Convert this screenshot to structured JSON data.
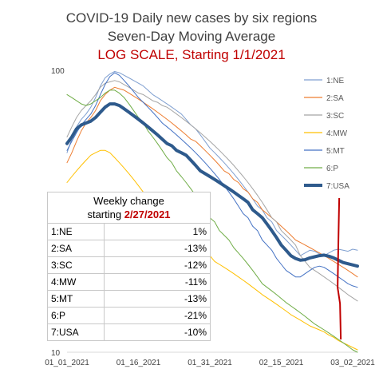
{
  "chart_data": {
    "type": "line",
    "title": "COVID-19 Daily new cases by six regions",
    "subtitle": "Seven-Day Moving Average",
    "note": "LOG SCALE, Starting 1/1/2021",
    "y_scale": "log",
    "ylim": [
      10,
      100
    ],
    "y_ticks": [
      "100",
      "10"
    ],
    "x_tick_labels": [
      "01_01_2021",
      "01_16_2021",
      "01_31_2021",
      "02_15_2021",
      "03_02_2021"
    ],
    "x": [
      "2021-01-01",
      "2021-01-02",
      "2021-01-03",
      "2021-01-04",
      "2021-01-05",
      "2021-01-06",
      "2021-01-07",
      "2021-01-08",
      "2021-01-09",
      "2021-01-10",
      "2021-01-11",
      "2021-01-12",
      "2021-01-13",
      "2021-01-14",
      "2021-01-15",
      "2021-01-16",
      "2021-01-17",
      "2021-01-18",
      "2021-01-19",
      "2021-01-20",
      "2021-01-21",
      "2021-01-22",
      "2021-01-23",
      "2021-01-24",
      "2021-01-25",
      "2021-01-26",
      "2021-01-27",
      "2021-01-28",
      "2021-01-29",
      "2021-01-30",
      "2021-01-31",
      "2021-02-01",
      "2021-02-02",
      "2021-02-03",
      "2021-02-04",
      "2021-02-05",
      "2021-02-06",
      "2021-02-07",
      "2021-02-08",
      "2021-02-09",
      "2021-02-10",
      "2021-02-11",
      "2021-02-12",
      "2021-02-13",
      "2021-02-14",
      "2021-02-15",
      "2021-02-16",
      "2021-02-17",
      "2021-02-18",
      "2021-02-19",
      "2021-02-20",
      "2021-02-21",
      "2021-02-22",
      "2021-02-23",
      "2021-02-24",
      "2021-02-25",
      "2021-02-26",
      "2021-02-27",
      "2021-02-28",
      "2021-03-01",
      "2021-03-02",
      "2021-03-03"
    ],
    "legend_position": "right",
    "series": [
      {
        "name": "1:NE",
        "color": "#7f9fd0",
        "width": 1,
        "values": [
          51,
          57,
          63,
          67,
          70,
          74,
          80,
          88,
          94,
          97,
          99,
          98,
          96,
          94,
          92,
          90,
          88,
          85,
          82,
          80,
          78,
          76,
          74,
          72,
          70,
          67,
          64,
          62,
          59,
          56,
          53,
          51,
          49,
          47,
          45,
          43,
          41,
          39,
          37,
          35,
          33,
          32,
          30,
          29,
          27,
          26,
          25,
          24,
          23,
          22,
          22.5,
          23,
          22.8,
          22.3,
          22,
          22.5,
          23,
          23.2,
          23,
          22.8,
          23.2,
          23
        ]
      },
      {
        "name": "2:SA",
        "color": "#ed7d31",
        "width": 1,
        "values": [
          47,
          51,
          56,
          61,
          65,
          68,
          72,
          78,
          82,
          85,
          87,
          86,
          85,
          83,
          81,
          79,
          77,
          75,
          73,
          71,
          69,
          67,
          65,
          63,
          61,
          59,
          57,
          56,
          54,
          52,
          50,
          48,
          46,
          44,
          43,
          41,
          40,
          38,
          37,
          35,
          34,
          32,
          31,
          30,
          29,
          28,
          27,
          26,
          25,
          24.5,
          24,
          23.5,
          23,
          22.5,
          22,
          21.5,
          21,
          20.5,
          20,
          19.5,
          19,
          18.5
        ]
      },
      {
        "name": "3:SC",
        "color": "#a5a5a5",
        "width": 1,
        "values": [
          58,
          63,
          68,
          72,
          75,
          78,
          82,
          87,
          90,
          91,
          92,
          91,
          89,
          87,
          85,
          83,
          82,
          80,
          78,
          77,
          75,
          74,
          72,
          70,
          68,
          66,
          64,
          62,
          60,
          58,
          56,
          54,
          52,
          50,
          48,
          46,
          44,
          42,
          40,
          38,
          36,
          34,
          32,
          30,
          29,
          27,
          26,
          25,
          24,
          22,
          21,
          20,
          19.5,
          19,
          18.5,
          18,
          17.5,
          17,
          16.5,
          16,
          15.6,
          15.2
        ]
      },
      {
        "name": "4:MW",
        "color": "#ffc000",
        "width": 1,
        "values": [
          40,
          42,
          44,
          46,
          48,
          50,
          51,
          52,
          52,
          51,
          49,
          47,
          45,
          43,
          41,
          39,
          37,
          35,
          34,
          33,
          32,
          31,
          30,
          29,
          28,
          27,
          26,
          25,
          24,
          23,
          22,
          21,
          20.5,
          20,
          19.5,
          19,
          18.5,
          18,
          17.5,
          17,
          16.5,
          16,
          15.6,
          15.2,
          14.8,
          14.4,
          14,
          13.6,
          13.3,
          13,
          12.7,
          12.4,
          12.2,
          12,
          11.8,
          11.5,
          11.3,
          11,
          10.8,
          10.6,
          10.4,
          10.2
        ]
      },
      {
        "name": "5:MT",
        "color": "#4472c4",
        "width": 1,
        "values": [
          52,
          56,
          60,
          64,
          67,
          70,
          75,
          82,
          89,
          95,
          98,
          96,
          92,
          88,
          84,
          80,
          77,
          74,
          71,
          68,
          65,
          63,
          61,
          59,
          57,
          55,
          53,
          51,
          49,
          47,
          45,
          43,
          41,
          39,
          37,
          35,
          33,
          31,
          30,
          28,
          27,
          25,
          24,
          23,
          21.5,
          20.5,
          19.5,
          19,
          18.5,
          18.5,
          19,
          19.5,
          20,
          20.2,
          20,
          19.5,
          19,
          18.5,
          18,
          17.5,
          17.2,
          17
        ]
      },
      {
        "name": "6:P",
        "color": "#70ad47",
        "width": 1,
        "values": [
          82,
          80,
          78,
          76,
          75,
          76,
          78,
          80,
          83,
          85,
          85,
          83,
          80,
          76,
          72,
          68,
          65,
          61,
          58,
          55,
          52,
          49,
          47,
          44,
          42,
          40,
          38,
          36,
          34,
          32,
          30,
          29,
          27,
          26,
          25,
          23.5,
          22.5,
          21.5,
          20.5,
          19.5,
          18.5,
          17.5,
          17,
          16.5,
          16,
          15.5,
          15,
          14.6,
          14.2,
          13.8,
          13.4,
          13,
          12.6,
          12.3,
          12,
          11.7,
          11.4,
          11.1,
          10.8,
          10.5,
          10.2,
          10
        ]
      },
      {
        "name": "7:USA",
        "color": "#2e5a8c",
        "width": 4,
        "values": [
          55,
          58,
          62,
          64,
          65,
          66,
          68,
          71,
          74,
          76,
          76,
          75,
          73,
          71,
          69,
          67,
          65,
          63,
          61,
          59,
          57,
          55,
          54,
          52,
          51,
          50,
          48,
          46,
          44,
          43,
          42,
          41,
          40,
          39,
          38,
          37,
          36,
          35,
          34,
          32,
          31,
          30,
          28.5,
          27,
          25.5,
          24,
          23,
          22,
          21.5,
          21.2,
          21.3,
          21.6,
          21.8,
          22,
          22.1,
          21.9,
          21.6,
          21.2,
          20.8,
          20.6,
          20.4,
          20.2
        ]
      }
    ]
  },
  "table": {
    "header_line1": "Weekly change",
    "header_line2_prefix": "starting ",
    "header_date": "2/27/2021",
    "rows": [
      {
        "name": "1:NE",
        "value": "1%"
      },
      {
        "name": "2:SA",
        "value": "-13%"
      },
      {
        "name": "3:SC",
        "value": "-12%"
      },
      {
        "name": "4:MW",
        "value": "-11%"
      },
      {
        "name": "5:MT",
        "value": "-13%"
      },
      {
        "name": "6:P",
        "value": "-21%"
      },
      {
        "name": "7:USA",
        "value": "-10%"
      }
    ]
  },
  "marker_date": "2021-02-27",
  "marker_color": "#c00000"
}
